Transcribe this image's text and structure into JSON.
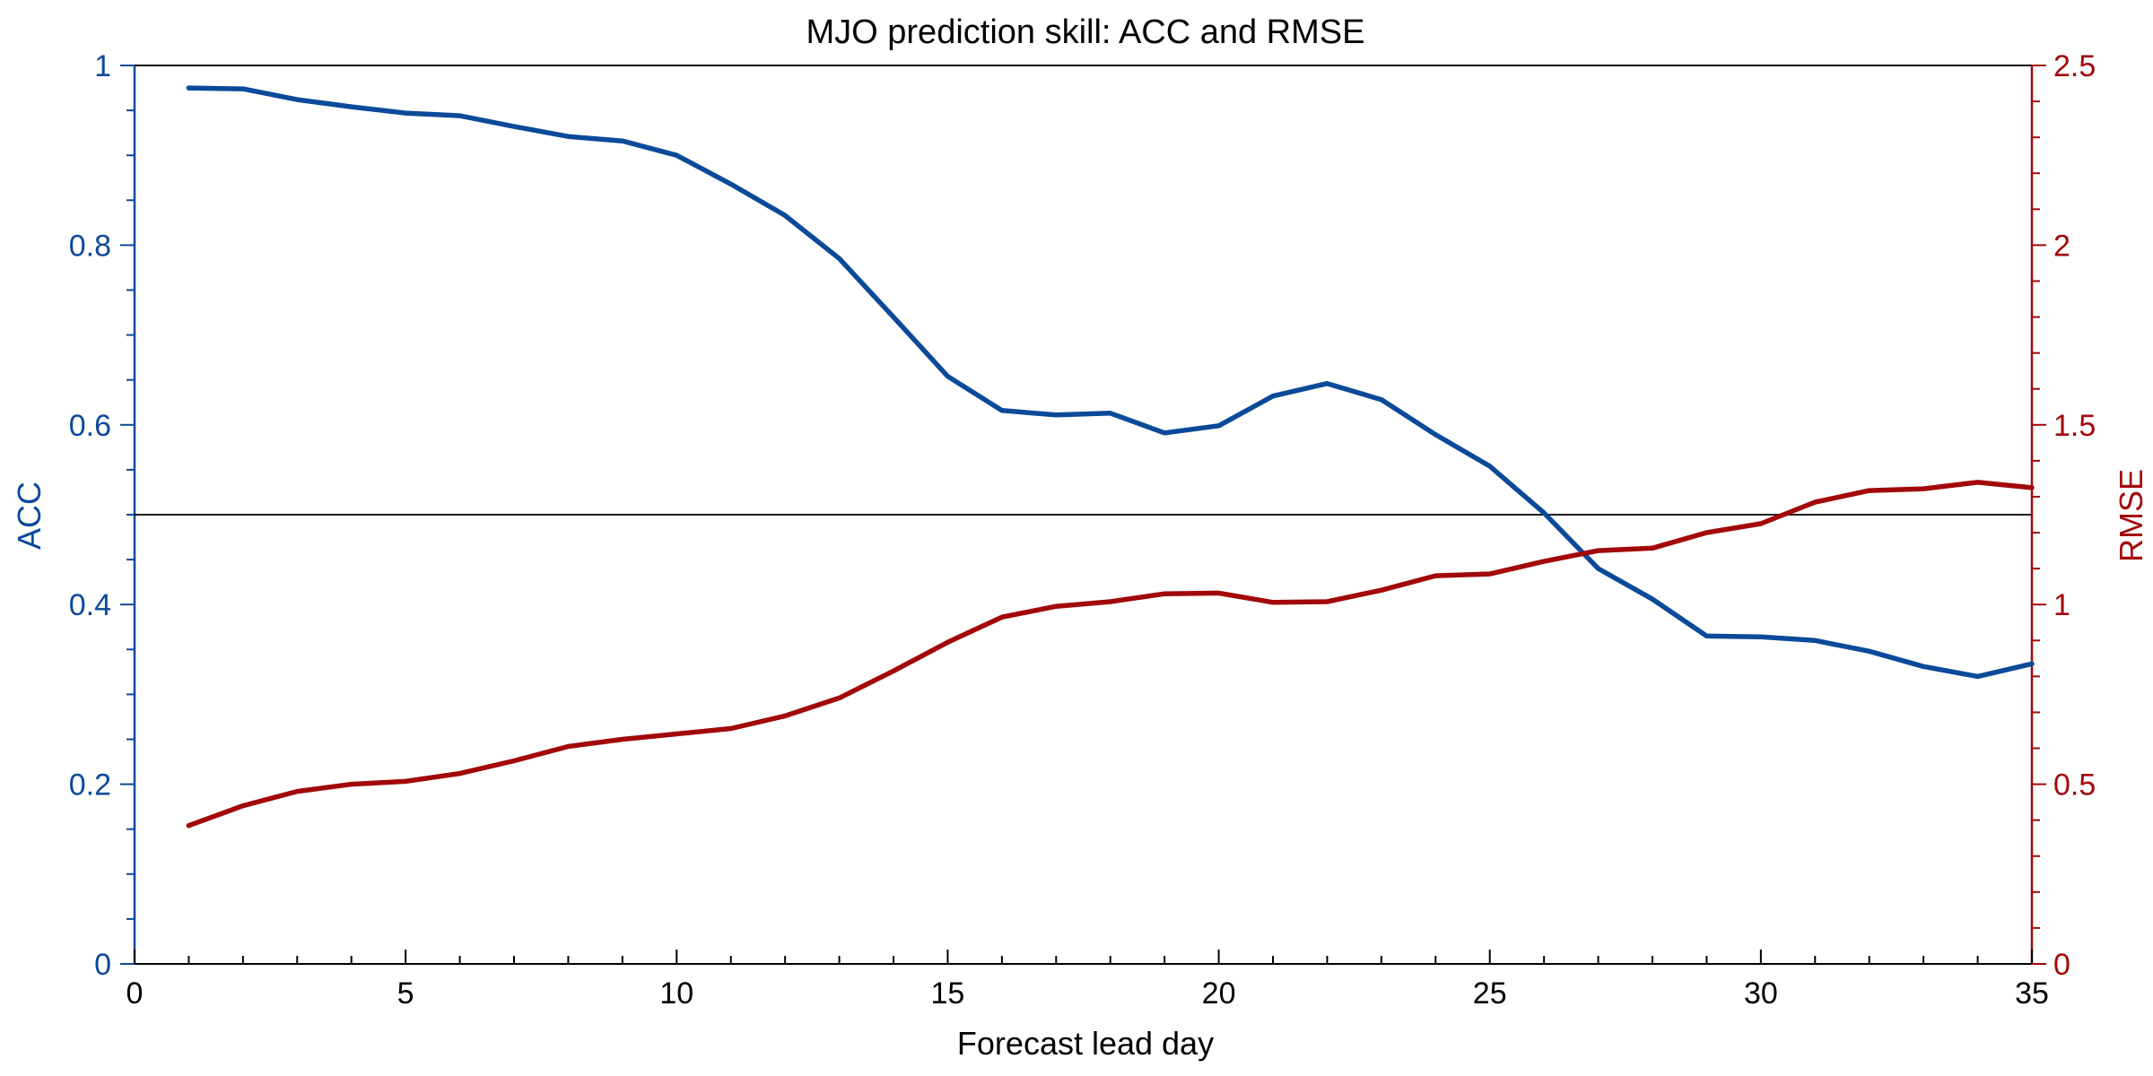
{
  "chart_data": {
    "type": "line",
    "title": "MJO prediction skill: ACC and RMSE",
    "xlabel": "Forecast lead day",
    "ylabel_left": "ACC",
    "ylabel_right": "RMSE",
    "xlim": [
      0,
      35
    ],
    "ylim_left": [
      0,
      1
    ],
    "ylim_right": [
      0,
      2.5
    ],
    "x_ticks": [
      0,
      5,
      10,
      15,
      20,
      25,
      30,
      35
    ],
    "y_left_ticks": [
      0,
      0.2,
      0.4,
      0.6,
      0.8,
      1
    ],
    "y_right_ticks": [
      0,
      0.5,
      1,
      1.5,
      2,
      2.5
    ],
    "y_left_tick_labels": [
      "0",
      "0.2",
      "0.4",
      "0.6",
      "0.8",
      "1"
    ],
    "y_right_tick_labels": [
      "0",
      "0.5",
      "1",
      "1.5",
      "2",
      "2.5"
    ],
    "reference_line_acc": 0.5,
    "grid": false,
    "x": [
      1,
      2,
      3,
      4,
      5,
      6,
      7,
      8,
      9,
      10,
      11,
      12,
      13,
      14,
      15,
      16,
      17,
      18,
      19,
      20,
      21,
      22,
      23,
      24,
      25,
      26,
      27,
      28,
      29,
      30,
      31,
      32,
      33,
      34,
      35
    ],
    "series": [
      {
        "axis": "left",
        "color": "#0b4a99",
        "values": [
          0.975,
          0.974,
          0.962,
          0.954,
          0.947,
          0.944,
          0.932,
          0.921,
          0.916,
          0.9,
          0.868,
          0.833,
          0.785,
          0.72,
          0.654,
          0.616,
          0.611,
          0.613,
          0.591,
          0.599,
          0.632,
          0.646,
          0.628,
          0.589,
          0.554,
          0.502,
          0.44,
          0.406,
          0.365,
          0.364,
          0.36,
          0.348,
          0.331,
          0.32,
          0.334
        ]
      },
      {
        "axis": "right",
        "color": "#a30808",
        "values": [
          0.385,
          0.44,
          0.48,
          0.5,
          0.508,
          0.53,
          0.565,
          0.605,
          0.625,
          0.64,
          0.655,
          0.69,
          0.74,
          0.815,
          0.895,
          0.965,
          0.995,
          1.008,
          1.03,
          1.032,
          1.006,
          1.008,
          1.04,
          1.08,
          1.085,
          1.12,
          1.15,
          1.157,
          1.2,
          1.225,
          1.285,
          1.317,
          1.322,
          1.34,
          1.325
        ]
      }
    ],
    "colors": {
      "acc_axis": "#0b4a99",
      "rmse_axis": "#a30808",
      "frame": "#000000"
    }
  }
}
